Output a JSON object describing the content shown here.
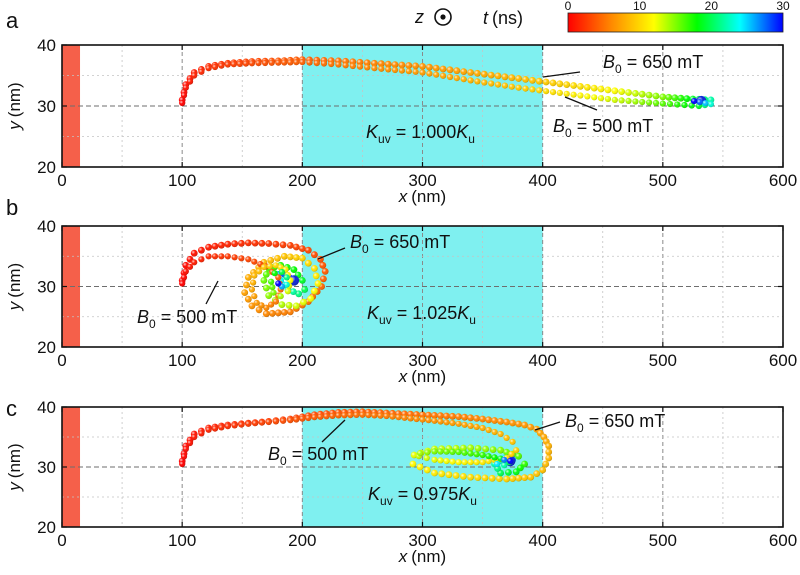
{
  "figure": {
    "z_symbol": "z",
    "colorbar": {
      "label_var": "t",
      "label_unit": "(ns)",
      "ticks": [
        "0",
        "10",
        "20",
        "30"
      ],
      "range": [
        0,
        30
      ],
      "colors": [
        "#ff0000",
        "#ff8800",
        "#ffff00",
        "#00ff00",
        "#00ffff",
        "#0000ff"
      ]
    }
  },
  "chart_data": [
    {
      "type": "scatter",
      "panel": "a",
      "xlabel_var": "x",
      "xlabel_unit": "(nm)",
      "ylabel_var": "y",
      "ylabel_unit": "(nm)",
      "xlim": [
        0,
        600
      ],
      "ylim": [
        20,
        40
      ],
      "xticks": [
        "0",
        "100",
        "200",
        "300",
        "400",
        "500",
        "600"
      ],
      "yticks": [
        "20",
        "30",
        "40"
      ],
      "grid": true,
      "edge_strip_x": [
        0,
        15
      ],
      "region": {
        "x": [
          200,
          400
        ],
        "color": "#7ff0f0"
      },
      "region_label": {
        "symbol": "K",
        "sub": "uv",
        "text": " = 1.000",
        "tail": "K",
        "tail_sub": "u"
      },
      "series": [
        {
          "name": "B0 = 650 mT",
          "x": [
            100,
            103,
            110,
            122,
            138,
            158,
            180,
            200,
            230,
            260,
            300,
            340,
            380,
            420,
            460,
            500,
            520,
            540,
            532
          ],
          "y": [
            31,
            33.5,
            35.5,
            36.5,
            37,
            37.3,
            37.4,
            37.6,
            37.4,
            37,
            36.5,
            35.5,
            34.5,
            33.5,
            32.5,
            31.5,
            31.2,
            31,
            30.8
          ],
          "t": [
            0,
            0.6,
            1.2,
            1.8,
            2.4,
            3,
            3.6,
            4,
            5,
            5.8,
            6.6,
            7.6,
            8.6,
            10,
            12,
            15,
            18,
            22,
            30
          ]
        },
        {
          "name": "B0 = 500 mT",
          "x": [
            100,
            103,
            110,
            122,
            138,
            158,
            180,
            200,
            230,
            260,
            300,
            340,
            380,
            420,
            460,
            500,
            530,
            540,
            526
          ],
          "y": [
            30.5,
            33,
            35,
            36.2,
            36.8,
            37,
            37.1,
            37.2,
            36.8,
            36.2,
            35.5,
            34.2,
            33,
            32,
            31,
            30.4,
            30,
            30.3,
            30.8
          ],
          "t": [
            0,
            0.7,
            1.4,
            2,
            2.6,
            3.2,
            3.8,
            4.3,
            5.3,
            6.2,
            7.1,
            8.2,
            9.3,
            11,
            13,
            16,
            19,
            23,
            30
          ]
        }
      ],
      "annotations": [
        {
          "sym": "B",
          "sub": "0",
          "text": " = 650 mT"
        },
        {
          "sym": "B",
          "sub": "0",
          "text": " = 500 mT"
        }
      ]
    },
    {
      "type": "scatter",
      "panel": "b",
      "xlabel_var": "x",
      "xlabel_unit": "(nm)",
      "ylabel_var": "y",
      "ylabel_unit": "(nm)",
      "xlim": [
        0,
        600
      ],
      "ylim": [
        20,
        40
      ],
      "xticks": [
        "0",
        "100",
        "200",
        "300",
        "400",
        "500",
        "600"
      ],
      "yticks": [
        "20",
        "30",
        "40"
      ],
      "grid": true,
      "edge_strip_x": [
        0,
        15
      ],
      "region": {
        "x": [
          200,
          400
        ],
        "color": "#7ff0f0"
      },
      "region_label": {
        "symbol": "K",
        "sub": "uv",
        "text": " = 1.025",
        "tail": "K",
        "tail_sub": "u"
      },
      "series": [
        {
          "name": "B0 = 650 mT",
          "x": [
            100,
            103,
            110,
            122,
            138,
            155,
            172,
            190,
            205,
            215,
            219,
            216,
            205,
            190,
            170,
            158,
            152,
            155,
            168,
            185,
            200,
            210,
            213,
            207,
            195,
            183,
            172,
            168,
            172,
            182,
            193,
            200,
            202,
            197,
            188,
            182,
            180,
            185,
            193
          ],
          "y": [
            31,
            33.5,
            35.5,
            36.5,
            37,
            37.2,
            37.1,
            36.8,
            36,
            34.5,
            32.5,
            30,
            27.5,
            25.8,
            25.5,
            26.8,
            29,
            31.5,
            34,
            35,
            34.7,
            33,
            30.5,
            28,
            26.8,
            27,
            28.5,
            31,
            33,
            33.5,
            32.8,
            31,
            29.5,
            28.8,
            29.5,
            31,
            32,
            32,
            31
          ],
          "t": [
            0,
            0.4,
            0.8,
            1.2,
            1.6,
            2,
            2.4,
            2.8,
            3.2,
            3.6,
            4,
            4.5,
            5,
            5.5,
            6,
            6.6,
            7.2,
            7.8,
            8.4,
            9,
            9.8,
            10.6,
            11.4,
            12.2,
            13,
            13.8,
            14.6,
            15.4,
            16.2,
            17,
            18,
            19,
            20,
            21,
            22.5,
            24,
            26,
            28,
            30
          ]
        },
        {
          "name": "B0 = 500 mT",
          "x": [
            100,
            103,
            110,
            122,
            138,
            155,
            170,
            180,
            182,
            178,
            170,
            162,
            158,
            160,
            168,
            178,
            186,
            190,
            188,
            182,
            176,
            174,
            177,
            183,
            187,
            187,
            183,
            180
          ],
          "y": [
            30.5,
            32.5,
            34,
            35,
            35,
            34.5,
            33.3,
            31.5,
            29.5,
            27.5,
            26.5,
            27.3,
            29.5,
            31.8,
            33.2,
            33.5,
            32.8,
            31,
            29.2,
            28.4,
            29,
            30.8,
            32.2,
            32.4,
            31.5,
            30.3,
            30,
            30.5
          ],
          "t": [
            0,
            0.6,
            1.2,
            1.8,
            2.4,
            3,
            3.6,
            4.2,
            4.8,
            5.4,
            6,
            6.8,
            7.6,
            8.4,
            9.2,
            10,
            11,
            12,
            13,
            14,
            15,
            16.5,
            18,
            19.5,
            21,
            23,
            26,
            30
          ]
        }
      ],
      "annotations": [
        {
          "sym": "B",
          "sub": "0",
          "text": " = 650 mT"
        },
        {
          "sym": "B",
          "sub": "0",
          "text": " = 500 mT"
        }
      ]
    },
    {
      "type": "scatter",
      "panel": "c",
      "xlabel_var": "x",
      "xlabel_unit": "(nm)",
      "ylabel_var": "y",
      "ylabel_unit": "(nm)",
      "xlim": [
        0,
        600
      ],
      "ylim": [
        20,
        40
      ],
      "xticks": [
        "0",
        "100",
        "200",
        "300",
        "400",
        "500",
        "600"
      ],
      "yticks": [
        "20",
        "30",
        "40"
      ],
      "grid": true,
      "edge_strip_x": [
        0,
        15
      ],
      "region": {
        "x": [
          200,
          400
        ],
        "color": "#7ff0f0"
      },
      "region_label": {
        "symbol": "K",
        "sub": "uv",
        "text": " = 0.975",
        "tail": "K",
        "tail_sub": "u"
      },
      "series": [
        {
          "name": "B0 = 650 mT",
          "x": [
            100,
            103,
            110,
            122,
            138,
            155,
            172,
            190,
            210,
            230,
            250,
            270,
            290,
            310,
            330,
            350,
            370,
            385,
            395,
            401,
            405,
            405,
            400,
            390,
            370,
            340,
            310,
            292,
            293,
            310,
            340,
            365,
            380,
            385,
            378,
            365,
            360,
            368,
            375,
            373
          ],
          "y": [
            31,
            33.5,
            35.5,
            36.5,
            37,
            37.3,
            37.6,
            38,
            38.7,
            39.1,
            39.2,
            39,
            38.8,
            38.6,
            38.4,
            38,
            37.5,
            37,
            36.3,
            35,
            33.5,
            31.5,
            29.5,
            28.3,
            28,
            28.3,
            29,
            30.5,
            32,
            33,
            33.2,
            32.8,
            31.8,
            30.5,
            29.2,
            29,
            30.5,
            31.5,
            31.2,
            31
          ],
          "t": [
            0,
            0.4,
            0.8,
            1.2,
            1.6,
            2,
            2.4,
            2.8,
            3.2,
            3.6,
            4,
            4.4,
            4.8,
            5.2,
            5.6,
            6,
            6.4,
            6.8,
            7.2,
            7.6,
            8,
            8.4,
            8.8,
            9.2,
            9.8,
            10.4,
            11,
            11.8,
            12.6,
            13.4,
            14.2,
            15,
            16,
            17,
            18.5,
            20,
            22,
            24.5,
            27,
            30
          ]
        },
        {
          "name": "B0 = 500 mT",
          "x": [
            100,
            103,
            110,
            122,
            138,
            155,
            172,
            190,
            210,
            230,
            250,
            270,
            290,
            310,
            330,
            350,
            365,
            375,
            378,
            370,
            350,
            330,
            310,
            297,
            298,
            310,
            330,
            350,
            365,
            372,
            368,
            362,
            368,
            373
          ],
          "y": [
            30.5,
            33,
            35,
            36.2,
            36.8,
            37.2,
            37.5,
            37.8,
            38.3,
            38.6,
            38.7,
            38.5,
            38.1,
            37.7,
            37.2,
            36.5,
            35.5,
            34.2,
            32.8,
            31.5,
            30.8,
            30.8,
            31.2,
            31.8,
            32.3,
            32.6,
            32.5,
            32,
            31.4,
            30.8,
            30.3,
            30.5,
            31.2,
            31
          ],
          "t": [
            0,
            0.5,
            1,
            1.5,
            2,
            2.5,
            3,
            3.5,
            4,
            4.5,
            5,
            5.5,
            6,
            6.6,
            7.2,
            7.8,
            8.4,
            9,
            9.6,
            10.2,
            11,
            11.8,
            12.6,
            13.4,
            14.2,
            15,
            16,
            17,
            18.5,
            20,
            22,
            24.5,
            27,
            30
          ]
        }
      ],
      "annotations": [
        {
          "sym": "B",
          "sub": "0",
          "text": " = 650 mT"
        },
        {
          "sym": "B",
          "sub": "0",
          "text": " = 500 mT"
        }
      ]
    }
  ]
}
